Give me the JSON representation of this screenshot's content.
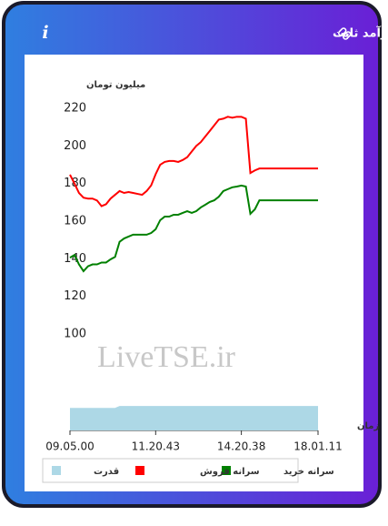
{
  "header": {
    "title": "سرانه ی خرید و فروش حقیقی در صندوق های درآمد ثابت",
    "info_icon": "i"
  },
  "chart_data": {
    "type": "line",
    "y_label": "میلیون تومان",
    "x_label": "زمان",
    "watermark": "LiveTSE.ir",
    "ylim": [
      48.7,
      223.4
    ],
    "yticks": [
      100,
      120,
      140,
      160,
      180,
      200,
      220
    ],
    "xlim": [
      0,
      55
    ],
    "xticks": [
      {
        "value": 0,
        "label": "09.05.00"
      },
      {
        "value": 19,
        "label": "11.20.43"
      },
      {
        "value": 38,
        "label": "14.20.38"
      },
      {
        "value": 55,
        "label": "18.01.11"
      }
    ],
    "series": [
      {
        "name": "سرانه خرید",
        "color": "#008000",
        "values": [
          140.6,
          142,
          137,
          133.4,
          136,
          137,
          137,
          138,
          138,
          139.7,
          141,
          149,
          150.8,
          151.8,
          152.8,
          152.8,
          152.8,
          152.8,
          153.7,
          155.7,
          160.5,
          162.4,
          162.4,
          163.4,
          163.4,
          164.4,
          165.3,
          164.4,
          165.3,
          167.3,
          168.7,
          170.2,
          171.1,
          173,
          176,
          177,
          178,
          178.4,
          178.9,
          178.4,
          163.9,
          166.3,
          171.1,
          171.1,
          171.1,
          171.1,
          171.1,
          171.1,
          171.1,
          171.1,
          171.1,
          171.1,
          171.1,
          171.1,
          171.1,
          171.1
        ]
      },
      {
        "name": "سرانه فروش",
        "color": "#ff0000",
        "values": [
          184.7,
          180,
          175,
          172.5,
          172,
          172,
          171,
          168,
          169,
          172,
          174,
          176,
          175,
          175.5,
          175,
          174.5,
          174,
          176,
          179,
          185,
          190,
          191.5,
          192,
          192,
          191.5,
          192.5,
          194,
          197,
          200,
          202,
          205,
          208,
          211,
          214,
          214.5,
          215.5,
          215,
          215.5,
          215.5,
          214.5,
          185.6,
          187,
          188,
          188,
          188,
          188,
          188,
          188,
          188,
          188,
          188,
          188,
          188,
          188,
          188,
          188
        ]
      },
      {
        "name": "قدرت",
        "color": "#add8e6",
        "type": "area",
        "values": [
          60.7,
          60.7,
          60.7,
          60.7,
          60.7,
          60.7,
          60.7,
          60.7,
          60.7,
          60.7,
          60.7,
          61.7,
          61.7,
          61.7,
          61.7,
          61.7,
          61.7,
          61.7,
          61.7,
          61.7,
          61.7,
          61.7,
          61.7,
          61.7,
          61.7,
          61.7,
          61.7,
          61.7,
          61.7,
          61.7,
          61.7,
          61.7,
          61.7,
          61.7,
          61.7,
          61.7,
          61.7,
          61.7,
          61.7,
          61.7,
          61.7,
          61.7,
          61.7,
          61.7,
          61.7,
          61.7,
          61.7,
          61.7,
          61.7,
          61.7,
          61.7,
          61.7,
          61.7,
          61.7,
          61.7,
          61.7
        ]
      }
    ]
  }
}
